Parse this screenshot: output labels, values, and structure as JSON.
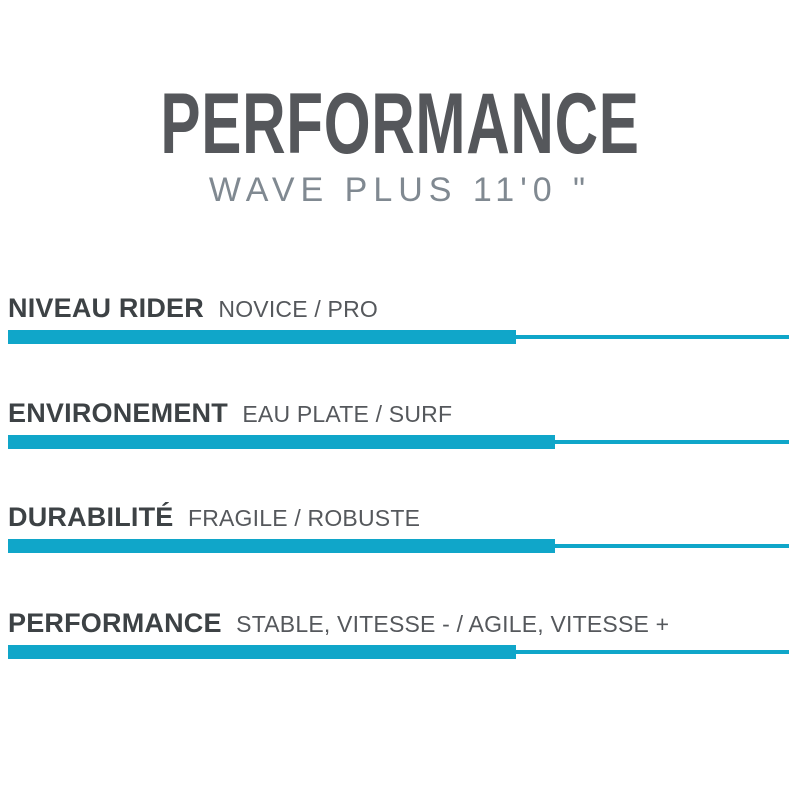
{
  "header": {
    "title": "PERFORMANCE",
    "subtitle": "WAVE PLUS 11'0 \""
  },
  "colors": {
    "accent_cyan": "#10a6c9",
    "title_gray": "#55575b",
    "subtitle_gray": "#808991",
    "label_dark": "#3d4245",
    "label_secondary": "#55585c"
  },
  "chart_data": {
    "type": "bar",
    "orientation": "horizontal",
    "title": "PERFORMANCE",
    "subtitle": "WAVE PLUS 11'0 \"",
    "categories": [
      "NIVEAU RIDER",
      "ENVIRONEMENT",
      "DURABILITÉ",
      "PERFORMANCE"
    ],
    "scale_descriptions": [
      "NOVICE / PRO",
      "EAU PLATE / SURF",
      "FRAGILE / ROBUSTE",
      "STABLE, VITESSE - / AGILE, VITESSE +"
    ],
    "values": [
      65,
      70,
      70,
      65
    ],
    "value_meaning": "filled portion of scale bar, percent",
    "xlim": [
      0,
      100
    ],
    "grid": false,
    "legend": false
  }
}
